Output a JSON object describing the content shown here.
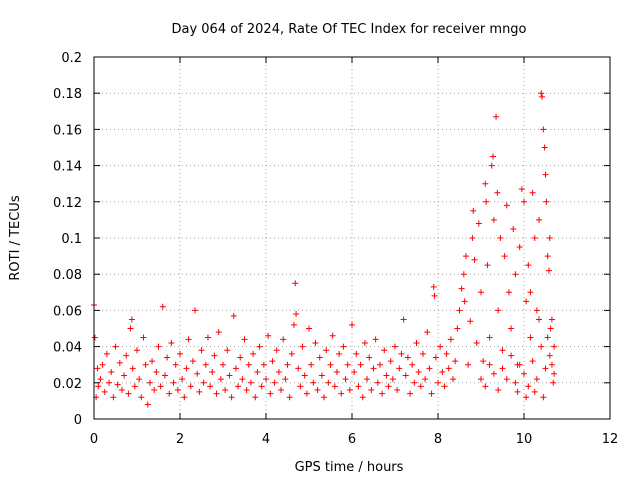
{
  "chart_data": {
    "type": "scatter",
    "title": "Day 064 of 2024, Rate Of TEC Index for receiver mngo",
    "xlabel": "GPS time / hours",
    "ylabel": "ROTI / TECUs",
    "xlim": [
      0,
      12
    ],
    "ylim": [
      0,
      0.2
    ],
    "x_ticks": [
      0,
      2,
      4,
      6,
      8,
      10,
      12
    ],
    "x_tick_labels": [
      "0",
      "2",
      "4",
      "6",
      "8",
      "10",
      "12"
    ],
    "y_ticks": [
      0,
      0.02,
      0.04,
      0.06,
      0.08,
      0.1,
      0.12,
      0.14,
      0.16,
      0.18,
      0.2
    ],
    "y_tick_labels": [
      "0",
      "0.02",
      "0.04",
      "0.06",
      "0.08",
      "0.1",
      "0.12",
      "0.14",
      "0.16",
      "0.18",
      "0.2"
    ],
    "grid": true,
    "marker": "+",
    "marker_color": "#ff0000",
    "series": [
      {
        "name": "ROTI",
        "points": [
          [
            0.0,
            0.063
          ],
          [
            0.02,
            0.045
          ],
          [
            0.05,
            0.012
          ],
          [
            0.08,
            0.028
          ],
          [
            0.1,
            0.018
          ],
          [
            0.15,
            0.022
          ],
          [
            0.2,
            0.03
          ],
          [
            0.25,
            0.015
          ],
          [
            0.3,
            0.036
          ],
          [
            0.35,
            0.02
          ],
          [
            0.4,
            0.026
          ],
          [
            0.45,
            0.012
          ],
          [
            0.5,
            0.04
          ],
          [
            0.55,
            0.019
          ],
          [
            0.6,
            0.031
          ],
          [
            0.65,
            0.016
          ],
          [
            0.7,
            0.024
          ],
          [
            0.75,
            0.035
          ],
          [
            0.8,
            0.014
          ],
          [
            0.85,
            0.05
          ],
          [
            0.88,
            0.055
          ],
          [
            0.9,
            0.028
          ],
          [
            0.95,
            0.018
          ],
          [
            1.0,
            0.038
          ],
          [
            1.05,
            0.022
          ],
          [
            1.1,
            0.012
          ],
          [
            1.15,
            0.045
          ],
          [
            1.2,
            0.03
          ],
          [
            1.25,
            0.008
          ],
          [
            1.3,
            0.02
          ],
          [
            1.35,
            0.032
          ],
          [
            1.4,
            0.016
          ],
          [
            1.45,
            0.026
          ],
          [
            1.5,
            0.04
          ],
          [
            1.55,
            0.018
          ],
          [
            1.6,
            0.062
          ],
          [
            1.65,
            0.024
          ],
          [
            1.7,
            0.034
          ],
          [
            1.75,
            0.014
          ],
          [
            1.8,
            0.042
          ],
          [
            1.85,
            0.02
          ],
          [
            1.9,
            0.03
          ],
          [
            1.95,
            0.016
          ],
          [
            2.0,
            0.036
          ],
          [
            2.05,
            0.022
          ],
          [
            2.1,
            0.012
          ],
          [
            2.15,
            0.028
          ],
          [
            2.2,
            0.044
          ],
          [
            2.25,
            0.018
          ],
          [
            2.3,
            0.032
          ],
          [
            2.35,
            0.06
          ],
          [
            2.4,
            0.025
          ],
          [
            2.45,
            0.015
          ],
          [
            2.5,
            0.038
          ],
          [
            2.55,
            0.02
          ],
          [
            2.6,
            0.03
          ],
          [
            2.65,
            0.045
          ],
          [
            2.7,
            0.018
          ],
          [
            2.75,
            0.026
          ],
          [
            2.8,
            0.035
          ],
          [
            2.85,
            0.014
          ],
          [
            2.9,
            0.048
          ],
          [
            2.95,
            0.022
          ],
          [
            3.0,
            0.03
          ],
          [
            3.05,
            0.016
          ],
          [
            3.1,
            0.038
          ],
          [
            3.15,
            0.024
          ],
          [
            3.2,
            0.012
          ],
          [
            3.25,
            0.057
          ],
          [
            3.3,
            0.028
          ],
          [
            3.35,
            0.018
          ],
          [
            3.4,
            0.034
          ],
          [
            3.45,
            0.022
          ],
          [
            3.5,
            0.044
          ],
          [
            3.55,
            0.016
          ],
          [
            3.6,
            0.03
          ],
          [
            3.65,
            0.02
          ],
          [
            3.7,
            0.036
          ],
          [
            3.75,
            0.012
          ],
          [
            3.8,
            0.026
          ],
          [
            3.85,
            0.04
          ],
          [
            3.9,
            0.018
          ],
          [
            3.95,
            0.03
          ],
          [
            4.0,
            0.022
          ],
          [
            4.05,
            0.046
          ],
          [
            4.1,
            0.014
          ],
          [
            4.15,
            0.032
          ],
          [
            4.2,
            0.02
          ],
          [
            4.25,
            0.038
          ],
          [
            4.3,
            0.026
          ],
          [
            4.35,
            0.016
          ],
          [
            4.4,
            0.044
          ],
          [
            4.45,
            0.022
          ],
          [
            4.5,
            0.03
          ],
          [
            4.55,
            0.012
          ],
          [
            4.6,
            0.036
          ],
          [
            4.65,
            0.052
          ],
          [
            4.68,
            0.075
          ],
          [
            4.7,
            0.058
          ],
          [
            4.75,
            0.028
          ],
          [
            4.8,
            0.018
          ],
          [
            4.85,
            0.04
          ],
          [
            4.9,
            0.024
          ],
          [
            4.95,
            0.014
          ],
          [
            5.0,
            0.05
          ],
          [
            5.05,
            0.03
          ],
          [
            5.1,
            0.02
          ],
          [
            5.15,
            0.042
          ],
          [
            5.2,
            0.016
          ],
          [
            5.25,
            0.034
          ],
          [
            5.3,
            0.024
          ],
          [
            5.35,
            0.012
          ],
          [
            5.4,
            0.038
          ],
          [
            5.45,
            0.02
          ],
          [
            5.5,
            0.03
          ],
          [
            5.55,
            0.046
          ],
          [
            5.6,
            0.018
          ],
          [
            5.65,
            0.026
          ],
          [
            5.7,
            0.036
          ],
          [
            5.75,
            0.014
          ],
          [
            5.8,
            0.04
          ],
          [
            5.85,
            0.022
          ],
          [
            5.9,
            0.03
          ],
          [
            5.95,
            0.016
          ],
          [
            6.0,
            0.052
          ],
          [
            6.05,
            0.026
          ],
          [
            6.1,
            0.036
          ],
          [
            6.15,
            0.018
          ],
          [
            6.2,
            0.03
          ],
          [
            6.25,
            0.012
          ],
          [
            6.3,
            0.042
          ],
          [
            6.35,
            0.022
          ],
          [
            6.4,
            0.034
          ],
          [
            6.45,
            0.016
          ],
          [
            6.5,
            0.028
          ],
          [
            6.55,
            0.044
          ],
          [
            6.6,
            0.02
          ],
          [
            6.65,
            0.03
          ],
          [
            6.7,
            0.014
          ],
          [
            6.75,
            0.038
          ],
          [
            6.8,
            0.024
          ],
          [
            6.85,
            0.018
          ],
          [
            6.9,
            0.032
          ],
          [
            6.95,
            0.022
          ],
          [
            7.0,
            0.04
          ],
          [
            7.05,
            0.016
          ],
          [
            7.1,
            0.028
          ],
          [
            7.15,
            0.036
          ],
          [
            7.2,
            0.055
          ],
          [
            7.25,
            0.024
          ],
          [
            7.3,
            0.034
          ],
          [
            7.35,
            0.014
          ],
          [
            7.4,
            0.03
          ],
          [
            7.45,
            0.02
          ],
          [
            7.5,
            0.042
          ],
          [
            7.55,
            0.026
          ],
          [
            7.6,
            0.018
          ],
          [
            7.65,
            0.036
          ],
          [
            7.7,
            0.022
          ],
          [
            7.75,
            0.048
          ],
          [
            7.8,
            0.028
          ],
          [
            7.85,
            0.014
          ],
          [
            7.9,
            0.073
          ],
          [
            7.92,
            0.068
          ],
          [
            7.95,
            0.034
          ],
          [
            8.0,
            0.02
          ],
          [
            8.05,
            0.04
          ],
          [
            8.1,
            0.026
          ],
          [
            8.15,
            0.018
          ],
          [
            8.2,
            0.036
          ],
          [
            8.25,
            0.028
          ],
          [
            8.3,
            0.044
          ],
          [
            8.35,
            0.022
          ],
          [
            8.4,
            0.032
          ],
          [
            8.45,
            0.05
          ],
          [
            8.5,
            0.06
          ],
          [
            8.55,
            0.072
          ],
          [
            8.6,
            0.08
          ],
          [
            8.62,
            0.065
          ],
          [
            8.65,
            0.09
          ],
          [
            8.7,
            0.03
          ],
          [
            8.75,
            0.054
          ],
          [
            8.8,
            0.1
          ],
          [
            8.82,
            0.115
          ],
          [
            8.85,
            0.088
          ],
          [
            8.9,
            0.042
          ],
          [
            8.95,
            0.108
          ],
          [
            9.0,
            0.07
          ],
          [
            9.05,
            0.032
          ],
          [
            9.1,
            0.13
          ],
          [
            9.12,
            0.12
          ],
          [
            9.15,
            0.085
          ],
          [
            9.2,
            0.045
          ],
          [
            9.25,
            0.14
          ],
          [
            9.28,
            0.145
          ],
          [
            9.3,
            0.11
          ],
          [
            9.35,
            0.167
          ],
          [
            9.38,
            0.125
          ],
          [
            9.4,
            0.06
          ],
          [
            9.45,
            0.1
          ],
          [
            9.5,
            0.038
          ],
          [
            9.55,
            0.09
          ],
          [
            9.6,
            0.118
          ],
          [
            9.65,
            0.07
          ],
          [
            9.7,
            0.05
          ],
          [
            9.75,
            0.105
          ],
          [
            9.8,
            0.08
          ],
          [
            9.85,
            0.03
          ],
          [
            9.9,
            0.095
          ],
          [
            9.95,
            0.127
          ],
          [
            10.0,
            0.12
          ],
          [
            10.05,
            0.065
          ],
          [
            10.1,
            0.085
          ],
          [
            10.15,
            0.045
          ],
          [
            10.2,
            0.125
          ],
          [
            10.25,
            0.1
          ],
          [
            10.3,
            0.06
          ],
          [
            10.35,
            0.11
          ],
          [
            10.4,
            0.18
          ],
          [
            10.42,
            0.178
          ],
          [
            10.45,
            0.16
          ],
          [
            10.48,
            0.15
          ],
          [
            10.5,
            0.135
          ],
          [
            10.52,
            0.12
          ],
          [
            10.55,
            0.09
          ],
          [
            10.58,
            0.082
          ],
          [
            10.6,
            0.1
          ],
          [
            10.62,
            0.05
          ],
          [
            10.65,
            0.03
          ],
          [
            10.68,
            0.02
          ],
          [
            10.7,
            0.04
          ],
          [
            9.0,
            0.022
          ],
          [
            9.1,
            0.018
          ],
          [
            9.2,
            0.03
          ],
          [
            9.3,
            0.025
          ],
          [
            9.4,
            0.016
          ],
          [
            9.5,
            0.028
          ],
          [
            9.6,
            0.022
          ],
          [
            9.7,
            0.035
          ],
          [
            9.8,
            0.02
          ],
          [
            9.9,
            0.03
          ],
          [
            10.0,
            0.025
          ],
          [
            10.1,
            0.018
          ],
          [
            10.2,
            0.032
          ],
          [
            10.3,
            0.022
          ],
          [
            10.4,
            0.04
          ],
          [
            10.5,
            0.028
          ],
          [
            10.6,
            0.035
          ],
          [
            10.7,
            0.025
          ],
          [
            9.85,
            0.015
          ],
          [
            10.05,
            0.012
          ],
          [
            10.25,
            0.015
          ],
          [
            10.45,
            0.012
          ],
          [
            10.15,
            0.07
          ],
          [
            10.35,
            0.055
          ],
          [
            10.55,
            0.045
          ],
          [
            10.65,
            0.055
          ]
        ]
      }
    ]
  }
}
